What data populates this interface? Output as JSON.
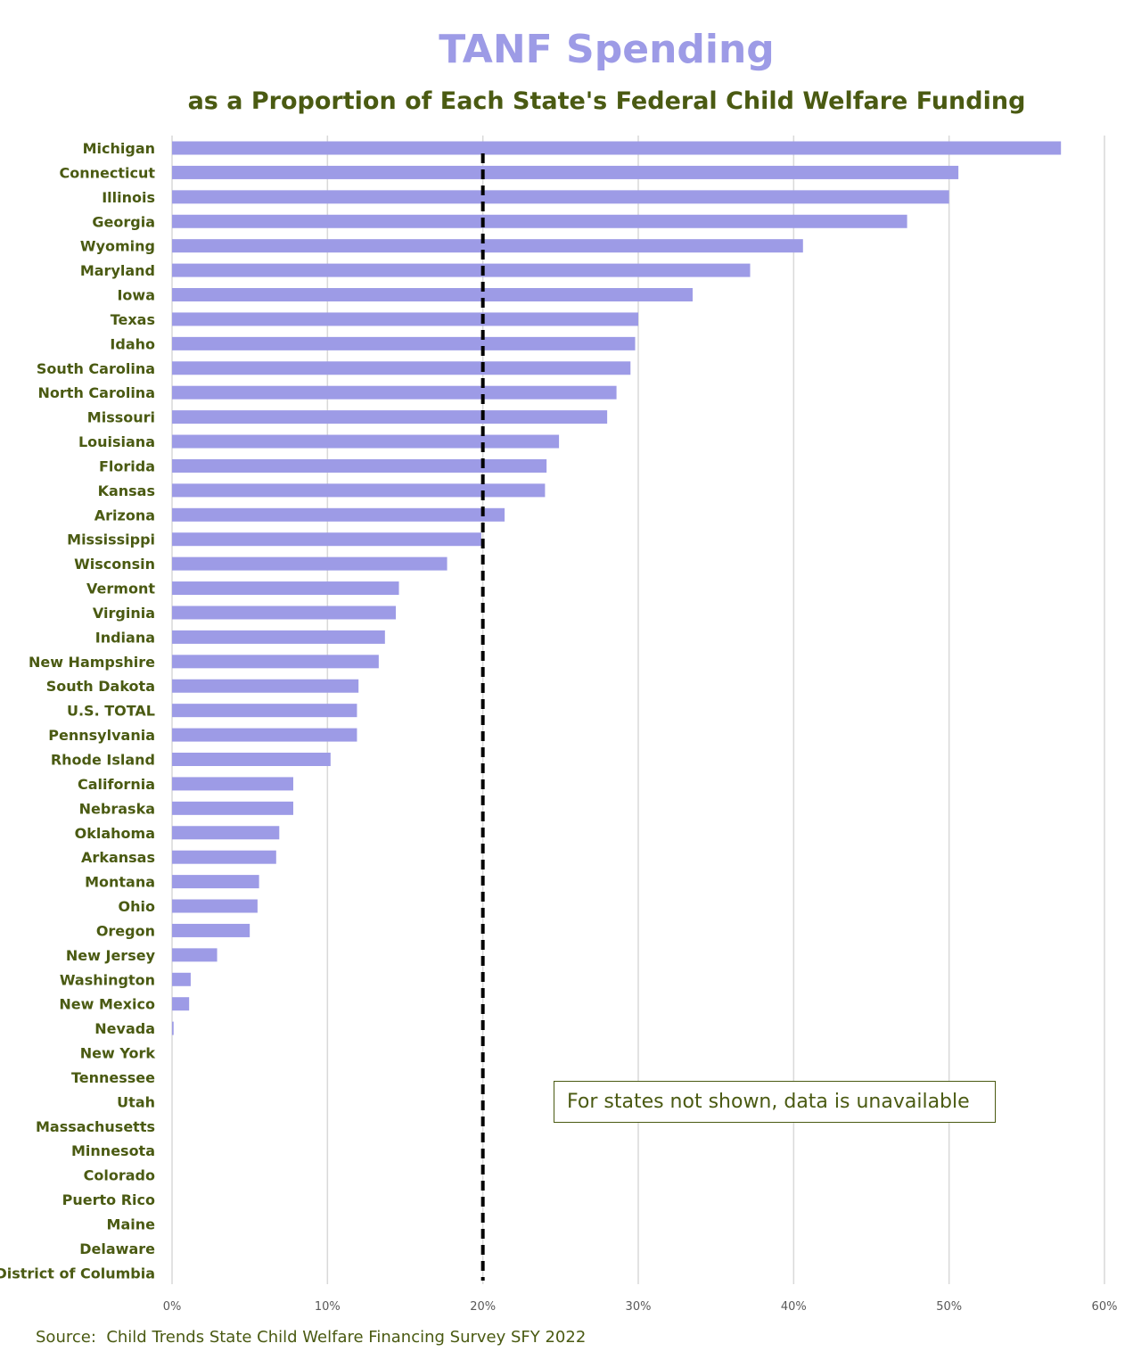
{
  "title": "TANF Spending",
  "subtitle": "as a Proportion of Each State's Federal Child Welfare Funding",
  "note": "For states not shown, data is unavailable",
  "source": "Source:  Child Trends State Child Welfare Financing Survey SFY 2022",
  "colors": {
    "bar": "#9d9be6",
    "title": "#9d9be6",
    "text": "#4a5a12",
    "grid": "#d9d9d9",
    "reference_line": "#000000"
  },
  "chart_data": {
    "type": "bar",
    "orientation": "horizontal",
    "title": "TANF Spending",
    "subtitle": "as a Proportion of Each State's Federal Child Welfare Funding",
    "categories": [
      "Michigan",
      "Connecticut",
      "Illinois",
      "Georgia",
      "Wyoming",
      "Maryland",
      "Iowa",
      "Texas",
      "Idaho",
      "South Carolina",
      "North Carolina",
      "Missouri",
      "Louisiana",
      "Florida",
      "Kansas",
      "Arizona",
      "Mississippi",
      "Wisconsin",
      "Vermont",
      "Virginia",
      "Indiana",
      "New Hampshire",
      "South Dakota",
      "U.S. TOTAL",
      "Pennsylvania",
      "Rhode Island",
      "California",
      "Nebraska",
      "Oklahoma",
      "Arkansas",
      "Montana",
      "Ohio",
      "Oregon",
      "New Jersey",
      "Washington",
      "New Mexico",
      "Nevada",
      "New York",
      "Tennessee",
      "Utah",
      "Massachusetts",
      "Minnesota",
      "Colorado",
      "Puerto Rico",
      "Maine",
      "Delaware",
      "District of Columbia"
    ],
    "values": [
      0.572,
      0.506,
      0.5,
      0.473,
      0.406,
      0.372,
      0.335,
      0.3,
      0.298,
      0.295,
      0.286,
      0.28,
      0.249,
      0.241,
      0.24,
      0.214,
      0.199,
      0.177,
      0.146,
      0.144,
      0.137,
      0.133,
      0.12,
      0.119,
      0.119,
      0.102,
      0.078,
      0.078,
      0.069,
      0.067,
      0.056,
      0.055,
      0.05,
      0.029,
      0.012,
      0.011,
      0.001,
      0,
      0,
      0,
      0,
      0,
      0,
      0,
      0,
      0,
      0
    ],
    "xlim": [
      0,
      0.6
    ],
    "x_ticks": [
      "0%",
      "10%",
      "20%",
      "30%",
      "40%",
      "50%",
      "60%"
    ],
    "grid": true,
    "reference_line": {
      "value": 0.2,
      "style": "dashed"
    },
    "legend": "none"
  }
}
